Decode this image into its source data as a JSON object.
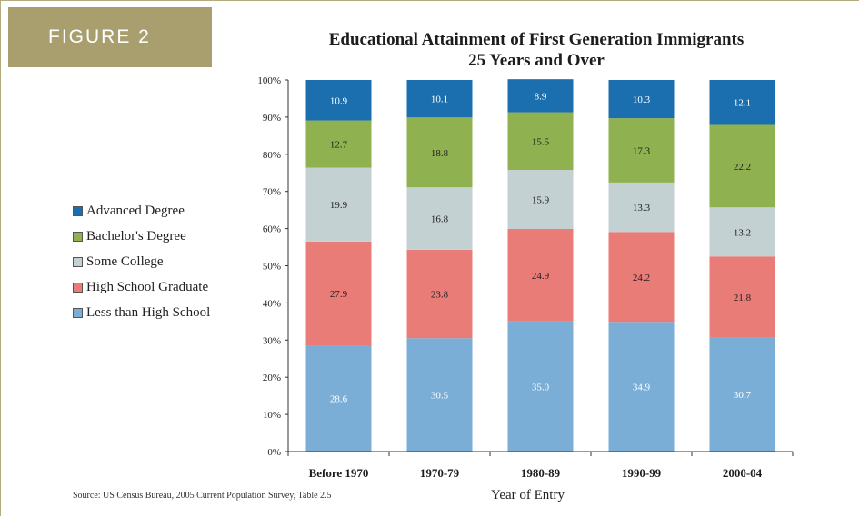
{
  "figure_label": "FIGURE 2",
  "source": "Source: US Census Bureau, 2005 Current Population Survey, Table 2.5",
  "chart_data": {
    "type": "bar",
    "stacked": true,
    "title": "Educational Attainment of First Generation Immigrants",
    "subtitle": "25 Years and Over",
    "xlabel": "Year of Entry",
    "ylabel": "",
    "ylim": [
      0,
      100
    ],
    "yticks": [
      "0%",
      "10%",
      "20%",
      "30%",
      "40%",
      "50%",
      "60%",
      "70%",
      "80%",
      "90%",
      "100%"
    ],
    "categories": [
      "Before 1970",
      "1970-79",
      "1980-89",
      "1990-99",
      "2000-04"
    ],
    "legend_position": "left",
    "series": [
      {
        "name": "Less than High School",
        "color": "#7aaed7",
        "label_color": "#ffffff",
        "values": [
          28.6,
          30.5,
          35.0,
          34.9,
          30.7
        ]
      },
      {
        "name": "High School Graduate",
        "color": "#e97c77",
        "label_color": "#222222",
        "values": [
          27.9,
          23.8,
          24.9,
          24.2,
          21.8
        ]
      },
      {
        "name": "Some College",
        "color": "#c4d1d3",
        "label_color": "#222222",
        "values": [
          19.9,
          16.8,
          15.9,
          13.3,
          13.2
        ]
      },
      {
        "name": "Bachelor's Degree",
        "color": "#8fb150",
        "label_color": "#222222",
        "values": [
          12.7,
          18.8,
          15.5,
          17.3,
          22.2
        ]
      },
      {
        "name": "Advanced Degree",
        "color": "#1b6fae",
        "label_color": "#ffffff",
        "values": [
          10.9,
          10.1,
          8.9,
          10.3,
          12.1
        ]
      }
    ],
    "legend_order": [
      "Advanced Degree",
      "Bachelor's Degree",
      "Some College",
      "High School Graduate",
      "Less than High School"
    ]
  }
}
